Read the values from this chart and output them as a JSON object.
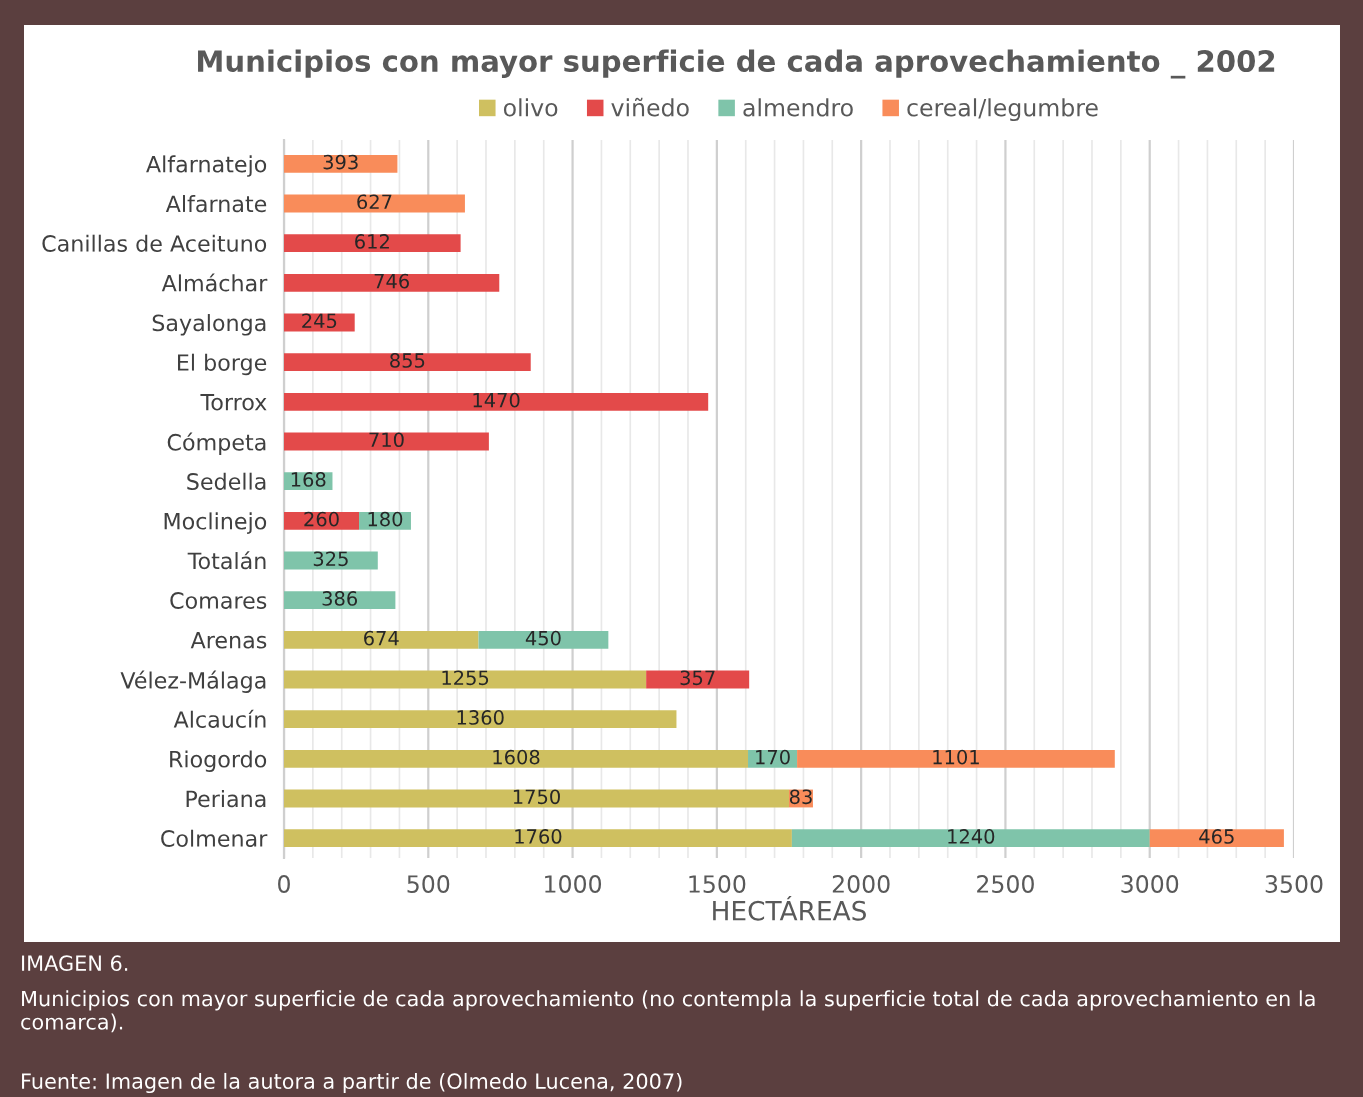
{
  "chart_data": {
    "type": "bar",
    "orientation": "horizontal",
    "stacked": true,
    "title": "Municipios con mayor superficie de cada aprovechamiento _ 2002",
    "xlabel": "HECTÁREAS",
    "categories": [
      "Alfarnatejo",
      "Alfarnate",
      "Canillas de Aceituno",
      "Almáchar",
      "Sayalonga",
      "El borge",
      "Torrox",
      "Cómpeta",
      "Sedella",
      "Moclinejo",
      "Totalán",
      "Comares",
      "Arenas",
      "Vélez-Málaga",
      "Alcaucín",
      "Riogordo",
      "Periana",
      "Colmenar"
    ],
    "series": [
      {
        "name": "olivo",
        "color": "#cfc060",
        "values": [
          null,
          null,
          null,
          null,
          null,
          null,
          null,
          null,
          null,
          null,
          null,
          null,
          674,
          1255,
          1360,
          1608,
          1750,
          1760
        ]
      },
      {
        "name": "viñedo",
        "color": "#e34a4a",
        "values": [
          null,
          null,
          612,
          746,
          245,
          855,
          1470,
          710,
          null,
          260,
          null,
          null,
          null,
          357,
          null,
          null,
          null,
          null
        ]
      },
      {
        "name": "almendro",
        "color": "#7fc4aa",
        "values": [
          null,
          null,
          null,
          null,
          null,
          null,
          null,
          null,
          168,
          180,
          325,
          386,
          450,
          null,
          null,
          170,
          null,
          1240
        ]
      },
      {
        "name": "cereal/legumbre",
        "color": "#f98c5a",
        "values": [
          393,
          627,
          null,
          null,
          null,
          null,
          null,
          null,
          null,
          null,
          null,
          null,
          null,
          null,
          null,
          1101,
          83,
          465
        ]
      }
    ],
    "xlim": [
      0,
      3500
    ],
    "xticks": [
      0,
      500,
      1000,
      1500,
      2000,
      2500,
      3000,
      3500
    ],
    "grid": "x",
    "legend": "top",
    "data_labels": true,
    "annotations": [
      "IMAGEN 6.",
      "Municipios con mayor superficie de cada aprovechamiento (no contempla la superficie total de cada aprovechamiento en la comarca).",
      "Fuente: Imagen de la autora a partir de (Olmedo Lucena, 2007)"
    ]
  }
}
